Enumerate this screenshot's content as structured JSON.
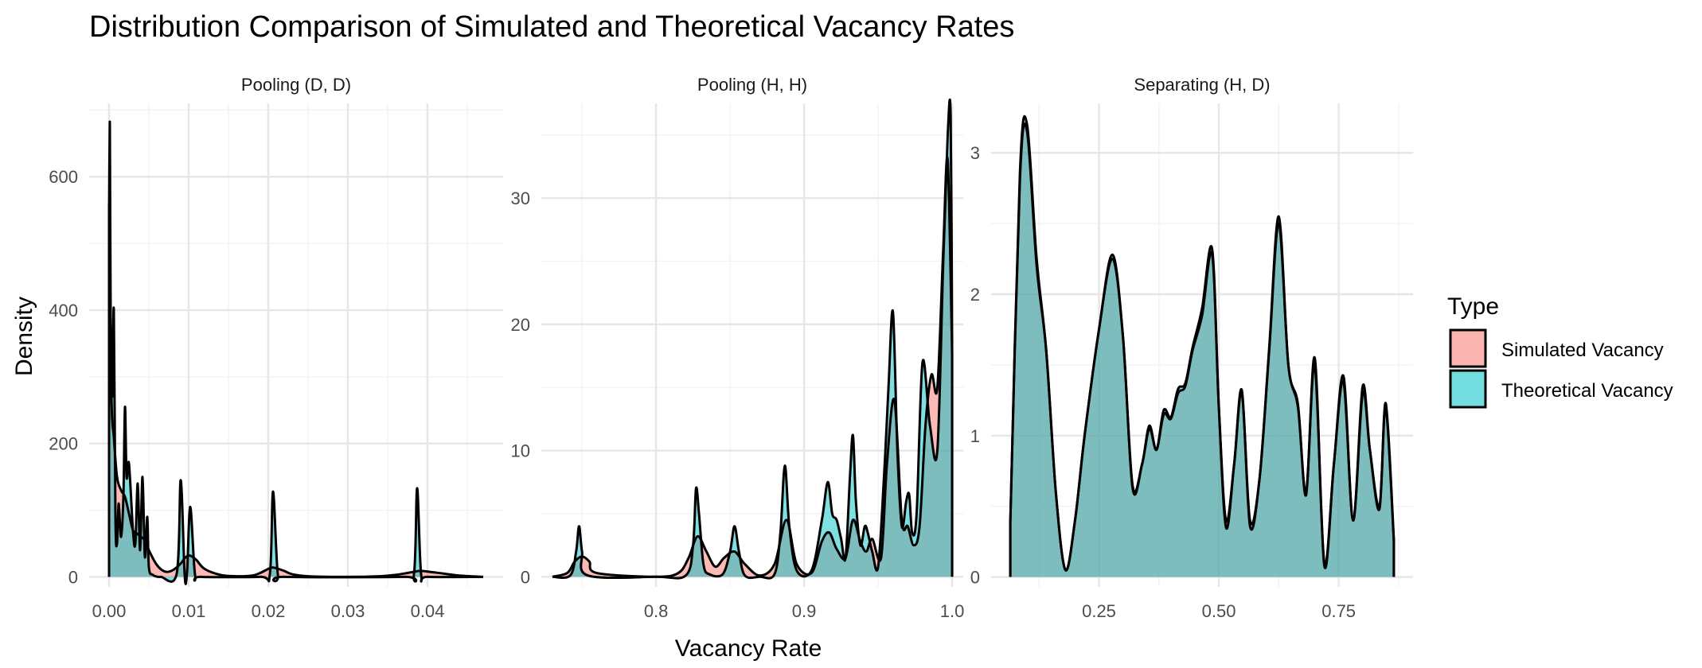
{
  "chart_data": {
    "type": "area",
    "title": "Distribution Comparison of Simulated and Theoretical Vacancy Rates",
    "xlabel": "Vacancy Rate",
    "ylabel": "Density",
    "legend": {
      "title": "Type",
      "position": "right",
      "entries": [
        {
          "name": "Simulated Vacancy",
          "color": "#F8766D"
        },
        {
          "name": "Theoretical Vacancy",
          "color": "#00BFC4"
        }
      ]
    },
    "grid": true,
    "panels": [
      {
        "label": "Pooling (D, D)",
        "xlim": [
          -0.0025,
          0.0495
        ],
        "ylim": [
          -15,
          710
        ],
        "xticks": [
          0.0,
          0.01,
          0.02,
          0.03,
          0.04
        ],
        "xtick_labels": [
          "0.00",
          "0.01",
          "0.02",
          "0.03",
          "0.04"
        ],
        "yticks": [
          0,
          200,
          400,
          600
        ],
        "ytick_labels": [
          "0",
          "200",
          "400",
          "600"
        ],
        "series": [
          {
            "name": "Simulated Vacancy",
            "x": [
              0.0,
              0.0003,
              0.0006,
              0.001,
              0.0015,
              0.002,
              0.0025,
              0.003,
              0.0035,
              0.004,
              0.0045,
              0.005,
              0.006,
              0.007,
              0.008,
              0.009,
              0.0095,
              0.01,
              0.0105,
              0.011,
              0.012,
              0.014,
              0.016,
              0.018,
              0.019,
              0.02,
              0.0205,
              0.021,
              0.022,
              0.023,
              0.025,
              0.03,
              0.034,
              0.036,
              0.038,
              0.039,
              0.04,
              0.042,
              0.044,
              0.047
            ],
            "y": [
              560,
              270,
              210,
              150,
              130,
              120,
              95,
              70,
              65,
              60,
              55,
              40,
              18,
              8,
              10,
              20,
              28,
              32,
              30,
              25,
              12,
              3,
              1,
              2,
              6,
              12,
              14,
              13,
              9,
              4,
              1,
              0,
              1,
              3,
              7,
              9,
              8,
              5,
              2,
              0
            ]
          },
          {
            "name": "Theoretical Vacancy",
            "x": [
              0.0,
              0.0001,
              0.0002,
              0.0004,
              0.0006,
              0.0008,
              0.001,
              0.0012,
              0.0015,
              0.0018,
              0.002,
              0.0022,
              0.0025,
              0.003,
              0.0033,
              0.0036,
              0.0039,
              0.0042,
              0.0045,
              0.0048,
              0.005,
              0.0055,
              0.0065,
              0.0085,
              0.009,
              0.0095,
              0.0098,
              0.0102,
              0.0108,
              0.0115,
              0.019,
              0.0202,
              0.0206,
              0.0212,
              0.022,
              0.037,
              0.0383,
              0.0387,
              0.0392,
              0.04,
              0.047
            ],
            "y": [
              540,
              680,
              400,
              270,
              400,
              90,
              50,
              110,
              60,
              120,
              255,
              150,
              170,
              70,
              50,
              140,
              40,
              150,
              30,
              90,
              15,
              3,
              0,
              5,
              145,
              2,
              8,
              105,
              3,
              0,
              0,
              4,
              128,
              4,
              0,
              0,
              4,
              133,
              4,
              0,
              0
            ]
          }
        ]
      },
      {
        "label": "Pooling (H, H)",
        "xlim": [
          0.7225,
          1.0075
        ],
        "ylim": [
          -0.8,
          37.5
        ],
        "xticks": [
          0.8,
          0.9,
          1.0
        ],
        "xtick_labels": [
          "0.8",
          "0.9",
          "1.0"
        ],
        "yticks": [
          0,
          10,
          20,
          30
        ],
        "ytick_labels": [
          "0",
          "10",
          "20",
          "30"
        ],
        "series": [
          {
            "name": "Simulated Vacancy",
            "x": [
              0.73,
              0.74,
              0.745,
              0.75,
              0.755,
              0.76,
              0.8,
              0.815,
              0.822,
              0.828,
              0.834,
              0.84,
              0.846,
              0.853,
              0.86,
              0.87,
              0.88,
              0.888,
              0.895,
              0.905,
              0.912,
              0.917,
              0.922,
              0.928,
              0.933,
              0.938,
              0.942,
              0.946,
              0.952,
              0.956,
              0.961,
              0.966,
              0.97,
              0.974,
              0.978,
              0.982,
              0.986,
              0.99,
              0.994,
              0.997,
              1.0
            ],
            "y": [
              0,
              0.3,
              1.2,
              1.6,
              1.2,
              0.3,
              0,
              0.3,
              1.5,
              3.2,
              2.0,
              0.8,
              1.5,
              2.0,
              1.0,
              0.1,
              1.0,
              4.5,
              1.0,
              0.3,
              2.8,
              3.5,
              2.2,
              1.5,
              4.5,
              2.8,
              2.0,
              3.0,
              1.5,
              9.0,
              14.0,
              4.5,
              4.0,
              2.5,
              4.0,
              12.0,
              16.0,
              15.0,
              26.0,
              33.0,
              17.5
            ]
          },
          {
            "name": "Theoretical Vacancy",
            "x": [
              0.73,
              0.742,
              0.746,
              0.748,
              0.75,
              0.754,
              0.8,
              0.82,
              0.825,
              0.827,
              0.829,
              0.832,
              0.836,
              0.845,
              0.85,
              0.853,
              0.856,
              0.86,
              0.87,
              0.88,
              0.884,
              0.887,
              0.89,
              0.895,
              0.905,
              0.912,
              0.916,
              0.919,
              0.922,
              0.925,
              0.928,
              0.931,
              0.933,
              0.935,
              0.938,
              0.941,
              0.943,
              0.946,
              0.95,
              0.954,
              0.957,
              0.96,
              0.963,
              0.966,
              0.969,
              0.971,
              0.973,
              0.976,
              0.98,
              0.985,
              0.99,
              0.994,
              0.997,
              0.999,
              1.0
            ],
            "y": [
              0,
              0.1,
              2.0,
              4.0,
              2.0,
              0.1,
              0,
              0.1,
              2.5,
              7.0,
              5.0,
              1.0,
              0.2,
              0.2,
              2.0,
              4.0,
              2.0,
              0.1,
              0,
              0.2,
              3.5,
              8.8,
              4.0,
              0.5,
              0.5,
              4.5,
              7.5,
              5.0,
              4.5,
              3.0,
              1.5,
              8.0,
              11.2,
              6.0,
              2.5,
              4.0,
              3.5,
              2.0,
              0.8,
              8.0,
              15.0,
              21.0,
              10.0,
              4.0,
              6.0,
              6.5,
              3.5,
              5.0,
              17.0,
              12.0,
              10.0,
              25.0,
              35.0,
              36.5,
              18.0
            ]
          }
        ]
      },
      {
        "label": "Separating (H, D)",
        "xlim": [
          0.025,
          0.905
        ],
        "ylim": [
          -0.07,
          3.35
        ],
        "xticks": [
          0.25,
          0.5,
          0.75
        ],
        "xtick_labels": [
          "0.25",
          "0.50",
          "0.75"
        ],
        "yticks": [
          0,
          1,
          2,
          3
        ],
        "ytick_labels": [
          "0",
          "1",
          "2",
          "3"
        ],
        "series": [
          {
            "name": "Simulated Vacancy",
            "x": [
              0.065,
              0.085,
              0.1,
              0.12,
              0.14,
              0.16,
              0.18,
              0.2,
              0.22,
              0.25,
              0.278,
              0.3,
              0.32,
              0.34,
              0.355,
              0.37,
              0.385,
              0.4,
              0.415,
              0.43,
              0.445,
              0.465,
              0.486,
              0.5,
              0.515,
              0.532,
              0.548,
              0.565,
              0.585,
              0.605,
              0.625,
              0.645,
              0.665,
              0.682,
              0.7,
              0.72,
              0.74,
              0.76,
              0.78,
              0.8,
              0.815,
              0.835,
              0.848,
              0.865
            ],
            "y": [
              0.38,
              2.8,
              3.15,
              2.2,
              1.6,
              0.6,
              0.05,
              0.4,
              1.0,
              1.75,
              2.25,
              1.7,
              0.65,
              0.8,
              1.05,
              0.9,
              1.15,
              1.12,
              1.3,
              1.35,
              1.6,
              1.85,
              2.28,
              1.2,
              0.4,
              0.8,
              1.3,
              0.4,
              0.7,
              1.6,
              2.5,
              1.5,
              1.2,
              0.6,
              1.5,
              0.1,
              0.8,
              1.38,
              0.4,
              1.3,
              0.9,
              0.5,
              1.2,
              0.25
            ]
          },
          {
            "name": "Theoretical Vacancy",
            "x": [
              0.065,
              0.085,
              0.1,
              0.12,
              0.14,
              0.16,
              0.18,
              0.2,
              0.22,
              0.25,
              0.278,
              0.3,
              0.32,
              0.34,
              0.355,
              0.37,
              0.385,
              0.4,
              0.415,
              0.43,
              0.445,
              0.465,
              0.486,
              0.5,
              0.515,
              0.532,
              0.548,
              0.565,
              0.585,
              0.605,
              0.625,
              0.645,
              0.665,
              0.682,
              0.7,
              0.72,
              0.74,
              0.76,
              0.78,
              0.8,
              0.815,
              0.835,
              0.848,
              0.865
            ],
            "y": [
              0.38,
              2.85,
              3.2,
              2.25,
              1.6,
              0.6,
              0.05,
              0.4,
              1.0,
              1.75,
              2.28,
              1.7,
              0.63,
              0.8,
              1.07,
              0.9,
              1.18,
              1.13,
              1.33,
              1.37,
              1.62,
              1.9,
              2.32,
              1.2,
              0.35,
              0.8,
              1.32,
              0.36,
              0.7,
              1.62,
              2.55,
              1.5,
              1.22,
              0.58,
              1.55,
              0.08,
              0.8,
              1.42,
              0.4,
              1.35,
              0.9,
              0.48,
              1.23,
              0.27
            ]
          }
        ]
      }
    ]
  }
}
